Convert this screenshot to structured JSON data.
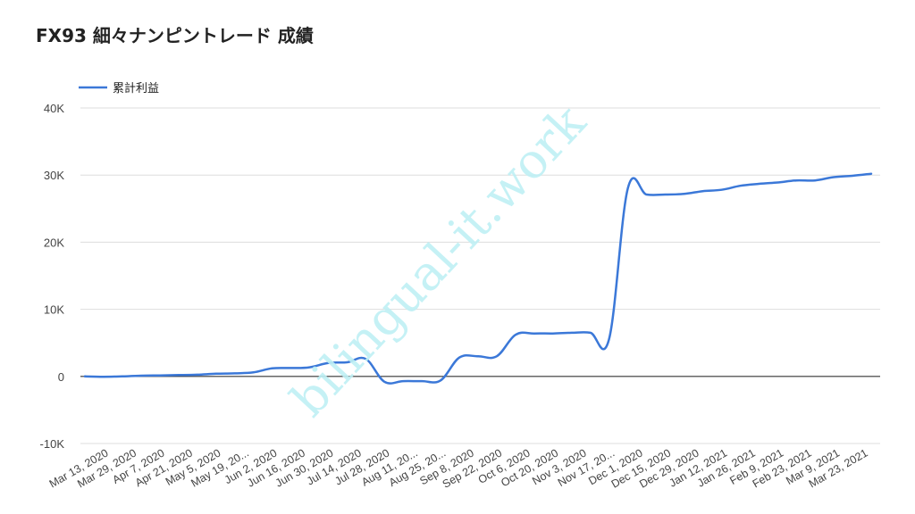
{
  "chart_data": {
    "type": "line",
    "title": "FX93 細々ナンピントレード 成績",
    "xlabel": "",
    "ylabel": "",
    "legend": {
      "position": "top-left",
      "entries": [
        "累計利益"
      ]
    },
    "ylim": [
      -10000,
      40000
    ],
    "yticks": [
      {
        "value": -10000,
        "label": "-10K"
      },
      {
        "value": 0,
        "label": "0"
      },
      {
        "value": 10000,
        "label": "10K"
      },
      {
        "value": 20000,
        "label": "20K"
      },
      {
        "value": 30000,
        "label": "30K"
      },
      {
        "value": 40000,
        "label": "40K"
      }
    ],
    "xtick_labels": [
      "Mar 13, 2020",
      "Mar 29, 2020",
      "Apr 7, 2020",
      "Apr 21, 2020",
      "May 5, 2020",
      "May 19, 20...",
      "Jun 2, 2020",
      "Jun 16, 2020",
      "Jun 30, 2020",
      "Jul 14, 2020",
      "Jul 28, 2020",
      "Aug 11, 20...",
      "Aug 25, 20...",
      "Sep 8, 2020",
      "Sep 22, 2020",
      "Oct 6, 2020",
      "Oct 20, 2020",
      "Nov 3, 2020",
      "Nov 17, 20...",
      "Dec 1, 2020",
      "Dec 15, 2020",
      "Dec 29, 2020",
      "Jan 12, 2021",
      "Jan 26, 2021",
      "Feb 9, 2021",
      "Feb 23, 2021",
      "Mar 9, 2021",
      "Mar 23, 2021"
    ],
    "grid": true,
    "series": [
      {
        "name": "累計利益",
        "color": "#3b78d8",
        "values": [
          0,
          -50,
          0,
          100,
          150,
          200,
          250,
          400,
          450,
          600,
          1200,
          1250,
          1350,
          2000,
          2100,
          2600,
          -800,
          -700,
          -700,
          -600,
          2800,
          3000,
          3000,
          6200,
          6400,
          6400,
          6500,
          6500,
          5600,
          28000,
          27100,
          27100,
          27200,
          27600,
          27800,
          28400,
          28700,
          28900,
          29200,
          29200,
          29700,
          29900,
          30200
        ]
      }
    ]
  },
  "watermark": {
    "text": "bilingual-it.work",
    "color": "#bff0f5"
  }
}
